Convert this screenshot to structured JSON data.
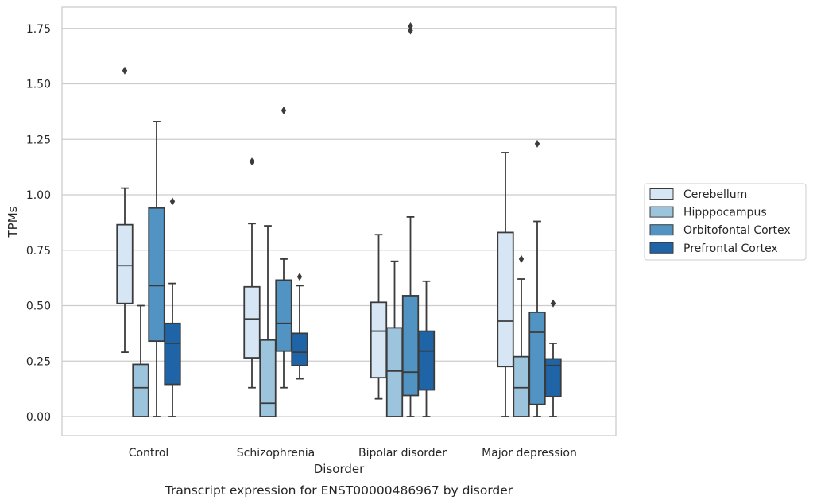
{
  "chart_data": {
    "type": "box",
    "title": "",
    "caption": "Transcript expression for ENST00000486967 by disorder",
    "xlabel": "Disorder",
    "ylabel": "TPMs",
    "ylim": [
      -0.085,
      1.85
    ],
    "yticks": [
      "0.00",
      "0.25",
      "0.50",
      "0.75",
      "1.00",
      "1.25",
      "1.50",
      "1.75"
    ],
    "ytick_values": [
      0,
      0.25,
      0.5,
      0.75,
      1.0,
      1.25,
      1.5,
      1.75
    ],
    "grid": true,
    "legend_position": "right",
    "categories": [
      "Control",
      "Schizophrenia",
      "Bipolar disorder",
      "Major depression"
    ],
    "series": [
      {
        "name": "Cerebellum",
        "color": "#d7e6f4",
        "boxes": [
          {
            "whislo": 0.29,
            "q1": 0.51,
            "med": 0.68,
            "q3": 0.865,
            "whishi": 1.03,
            "fliers": [
              1.56
            ]
          },
          {
            "whislo": 0.13,
            "q1": 0.265,
            "med": 0.44,
            "q3": 0.585,
            "whishi": 0.87,
            "fliers": [
              1.15
            ]
          },
          {
            "whislo": 0.08,
            "q1": 0.175,
            "med": 0.385,
            "q3": 0.515,
            "whishi": 0.82,
            "fliers": []
          },
          {
            "whislo": 0.0,
            "q1": 0.225,
            "med": 0.43,
            "q3": 0.83,
            "whishi": 1.19,
            "fliers": []
          }
        ]
      },
      {
        "name": "Hipppocampus",
        "color": "#9cc4dd",
        "boxes": [
          {
            "whislo": 0.0,
            "q1": 0.0,
            "med": 0.13,
            "q3": 0.235,
            "whishi": 0.5,
            "fliers": []
          },
          {
            "whislo": 0.0,
            "q1": 0.0,
            "med": 0.06,
            "q3": 0.345,
            "whishi": 0.86,
            "fliers": []
          },
          {
            "whislo": 0.0,
            "q1": 0.0,
            "med": 0.205,
            "q3": 0.4,
            "whishi": 0.7,
            "fliers": []
          },
          {
            "whislo": 0.0,
            "q1": 0.0,
            "med": 0.13,
            "q3": 0.27,
            "whishi": 0.62,
            "fliers": [
              0.71
            ]
          }
        ]
      },
      {
        "name": "Orbitofontal Cortex",
        "color": "#5193c2",
        "boxes": [
          {
            "whislo": 0.0,
            "q1": 0.34,
            "med": 0.59,
            "q3": 0.94,
            "whishi": 1.33,
            "fliers": []
          },
          {
            "whislo": 0.13,
            "q1": 0.295,
            "med": 0.42,
            "q3": 0.615,
            "whishi": 0.71,
            "fliers": [
              1.38
            ]
          },
          {
            "whislo": 0.0,
            "q1": 0.095,
            "med": 0.2,
            "q3": 0.545,
            "whishi": 0.9,
            "fliers": [
              1.74,
              1.76
            ]
          },
          {
            "whislo": 0.0,
            "q1": 0.055,
            "med": 0.38,
            "q3": 0.47,
            "whishi": 0.88,
            "fliers": [
              1.23
            ]
          }
        ]
      },
      {
        "name": "Prefrontal Cortex",
        "color": "#2064a8",
        "boxes": [
          {
            "whislo": 0.0,
            "q1": 0.145,
            "med": 0.33,
            "q3": 0.42,
            "whishi": 0.6,
            "fliers": [
              0.97
            ]
          },
          {
            "whislo": 0.17,
            "q1": 0.23,
            "med": 0.29,
            "q3": 0.375,
            "whishi": 0.59,
            "fliers": [
              0.63
            ]
          },
          {
            "whislo": 0.0,
            "q1": 0.12,
            "med": 0.295,
            "q3": 0.385,
            "whishi": 0.61,
            "fliers": []
          },
          {
            "whislo": 0.0,
            "q1": 0.09,
            "med": 0.23,
            "q3": 0.26,
            "whishi": 0.33,
            "fliers": [
              0.51
            ]
          }
        ]
      }
    ]
  }
}
